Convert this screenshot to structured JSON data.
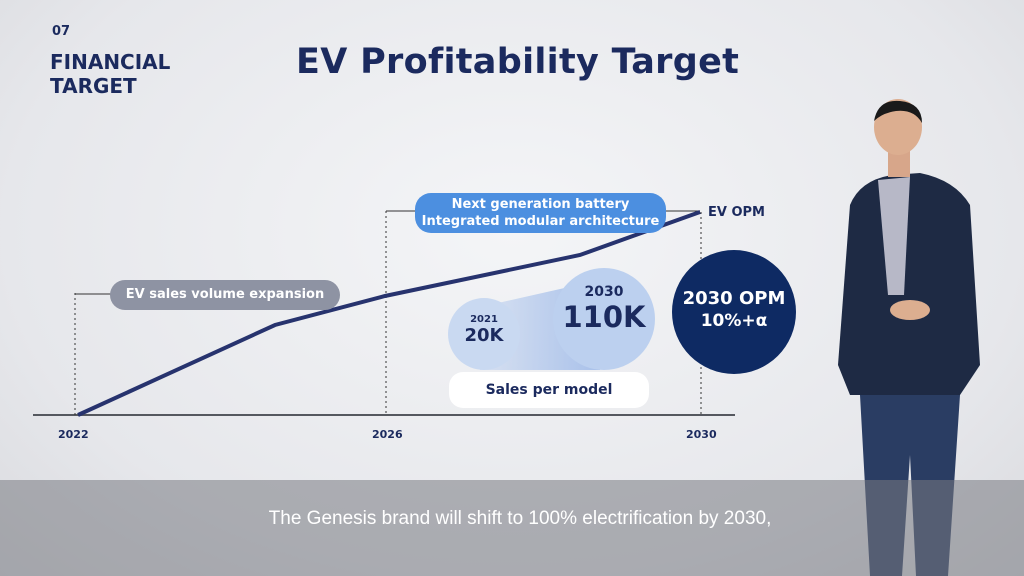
{
  "section": {
    "number": "07",
    "title": "FINANCIAL TARGET"
  },
  "title": "EV Profitability Target",
  "chart": {
    "x_labels": [
      "2022",
      "2026",
      "2030"
    ],
    "phase1_label": "EV sales volume expansion",
    "phase2_label_line1": "Next generation battery",
    "phase2_label_line2": "Integrated modular architecture",
    "line_label": "EV OPM",
    "line_color": "#27336e"
  },
  "sales": {
    "year_2021": "2021",
    "value_2021": "20K",
    "year_2030": "2030",
    "value_2030": "110K",
    "label": "Sales per model"
  },
  "opm": {
    "line1": "2030 OPM",
    "line2": "10%+α"
  },
  "caption": "The Genesis brand will shift to 100% electrification by 2030,"
}
